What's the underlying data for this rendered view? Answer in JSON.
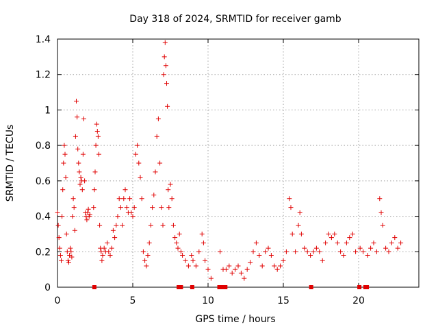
{
  "chart_data": {
    "type": "scatter",
    "title": "Day 318 of 2024, SRMTID for receiver gamb",
    "xlabel": "GPS time / hours",
    "ylabel": "SRMTID / TECUs",
    "xlim": [
      0,
      24
    ],
    "ylim": [
      0,
      1.4
    ],
    "xticks": [
      0,
      5,
      10,
      15,
      20
    ],
    "xtick_labels": [
      "0",
      "5",
      "10",
      "15",
      "20"
    ],
    "yticks": [
      0,
      0.2,
      0.4,
      0.6,
      0.8,
      1.0,
      1.2,
      1.4
    ],
    "ytick_labels": [
      "0",
      "0.2",
      "0.4",
      "0.6",
      "0.8",
      "1",
      "1.2",
      "1.4"
    ],
    "grid": true,
    "marker": "+",
    "color": "#e00000",
    "series": [
      {
        "name": "SRMTID",
        "points": [
          [
            0.0,
            0.42
          ],
          [
            0.05,
            0.35
          ],
          [
            0.1,
            0.28
          ],
          [
            0.15,
            0.22
          ],
          [
            0.2,
            0.18
          ],
          [
            0.25,
            0.15
          ],
          [
            0.3,
            0.4
          ],
          [
            0.35,
            0.55
          ],
          [
            0.4,
            0.7
          ],
          [
            0.45,
            0.8
          ],
          [
            0.5,
            0.75
          ],
          [
            0.55,
            0.62
          ],
          [
            0.6,
            0.3
          ],
          [
            0.65,
            0.2
          ],
          [
            0.7,
            0.15
          ],
          [
            0.75,
            0.14
          ],
          [
            0.8,
            0.18
          ],
          [
            0.85,
            0.22
          ],
          [
            0.9,
            0.2
          ],
          [
            0.95,
            0.17
          ],
          [
            1.0,
            0.4
          ],
          [
            1.05,
            0.5
          ],
          [
            1.1,
            0.45
          ],
          [
            1.15,
            0.32
          ],
          [
            1.2,
            0.85
          ],
          [
            1.25,
            1.05
          ],
          [
            1.3,
            0.96
          ],
          [
            1.35,
            0.78
          ],
          [
            1.4,
            0.7
          ],
          [
            1.45,
            0.65
          ],
          [
            1.5,
            0.58
          ],
          [
            1.55,
            0.62
          ],
          [
            1.6,
            0.6
          ],
          [
            1.65,
            0.55
          ],
          [
            1.7,
            0.75
          ],
          [
            1.75,
            0.95
          ],
          [
            1.8,
            0.6
          ],
          [
            1.85,
            0.42
          ],
          [
            1.9,
            0.4
          ],
          [
            1.95,
            0.38
          ],
          [
            2.0,
            0.42
          ],
          [
            2.05,
            0.44
          ],
          [
            2.1,
            0.4
          ],
          [
            2.15,
            0.41
          ],
          [
            2.4,
            0.45
          ],
          [
            2.45,
            0.55
          ],
          [
            2.5,
            0.65
          ],
          [
            2.55,
            0.8
          ],
          [
            2.6,
            0.92
          ],
          [
            2.65,
            0.88
          ],
          [
            2.7,
            0.85
          ],
          [
            2.75,
            0.75
          ],
          [
            2.8,
            0.35
          ],
          [
            2.85,
            0.22
          ],
          [
            2.9,
            0.2
          ],
          [
            2.95,
            0.15
          ],
          [
            3.0,
            0.18
          ],
          [
            3.1,
            0.22
          ],
          [
            3.2,
            0.2
          ],
          [
            3.3,
            0.25
          ],
          [
            3.4,
            0.2
          ],
          [
            3.5,
            0.18
          ],
          [
            3.6,
            0.22
          ],
          [
            3.7,
            0.32
          ],
          [
            3.8,
            0.28
          ],
          [
            3.9,
            0.35
          ],
          [
            4.0,
            0.4
          ],
          [
            4.1,
            0.5
          ],
          [
            4.2,
            0.45
          ],
          [
            4.3,
            0.35
          ],
          [
            4.4,
            0.5
          ],
          [
            4.5,
            0.55
          ],
          [
            4.6,
            0.45
          ],
          [
            4.7,
            0.42
          ],
          [
            4.8,
            0.5
          ],
          [
            4.9,
            0.42
          ],
          [
            5.0,
            0.4
          ],
          [
            5.1,
            0.45
          ],
          [
            5.2,
            0.75
          ],
          [
            5.3,
            0.8
          ],
          [
            5.4,
            0.7
          ],
          [
            5.5,
            0.62
          ],
          [
            5.6,
            0.5
          ],
          [
            5.7,
            0.2
          ],
          [
            5.8,
            0.15
          ],
          [
            5.9,
            0.12
          ],
          [
            6.0,
            0.18
          ],
          [
            6.1,
            0.25
          ],
          [
            6.2,
            0.35
          ],
          [
            6.3,
            0.45
          ],
          [
            6.4,
            0.52
          ],
          [
            6.5,
            0.65
          ],
          [
            6.6,
            0.85
          ],
          [
            6.7,
            0.95
          ],
          [
            6.8,
            0.7
          ],
          [
            6.9,
            0.45
          ],
          [
            7.0,
            0.35
          ],
          [
            7.05,
            1.2
          ],
          [
            7.1,
            1.3
          ],
          [
            7.15,
            1.38
          ],
          [
            7.2,
            1.25
          ],
          [
            7.25,
            1.15
          ],
          [
            7.3,
            1.02
          ],
          [
            7.35,
            0.55
          ],
          [
            7.4,
            0.45
          ],
          [
            7.5,
            0.58
          ],
          [
            7.6,
            0.5
          ],
          [
            7.7,
            0.35
          ],
          [
            7.8,
            0.28
          ],
          [
            7.9,
            0.25
          ],
          [
            8.0,
            0.22
          ],
          [
            8.1,
            0.3
          ],
          [
            8.2,
            0.2
          ],
          [
            8.3,
            0.18
          ],
          [
            8.5,
            0.15
          ],
          [
            8.7,
            0.12
          ],
          [
            8.9,
            0.18
          ],
          [
            9.0,
            0.15
          ],
          [
            9.2,
            0.12
          ],
          [
            9.4,
            0.2
          ],
          [
            9.6,
            0.3
          ],
          [
            9.7,
            0.25
          ],
          [
            9.8,
            0.15
          ],
          [
            10.0,
            0.1
          ],
          [
            10.2,
            0.05
          ],
          [
            10.8,
            0.2
          ],
          [
            11.0,
            0.1
          ],
          [
            11.2,
            0.1
          ],
          [
            11.4,
            0.12
          ],
          [
            11.6,
            0.08
          ],
          [
            11.8,
            0.1
          ],
          [
            12.0,
            0.12
          ],
          [
            12.2,
            0.08
          ],
          [
            12.4,
            0.05
          ],
          [
            12.6,
            0.1
          ],
          [
            12.8,
            0.14
          ],
          [
            13.0,
            0.2
          ],
          [
            13.2,
            0.25
          ],
          [
            13.4,
            0.18
          ],
          [
            13.6,
            0.12
          ],
          [
            13.8,
            0.2
          ],
          [
            14.0,
            0.22
          ],
          [
            14.2,
            0.18
          ],
          [
            14.4,
            0.12
          ],
          [
            14.6,
            0.1
          ],
          [
            14.8,
            0.12
          ],
          [
            15.0,
            0.15
          ],
          [
            15.2,
            0.2
          ],
          [
            15.4,
            0.5
          ],
          [
            15.5,
            0.45
          ],
          [
            15.6,
            0.3
          ],
          [
            15.8,
            0.2
          ],
          [
            16.0,
            0.35
          ],
          [
            16.1,
            0.42
          ],
          [
            16.2,
            0.3
          ],
          [
            16.4,
            0.22
          ],
          [
            16.6,
            0.2
          ],
          [
            16.8,
            0.18
          ],
          [
            17.0,
            0.2
          ],
          [
            17.2,
            0.22
          ],
          [
            17.4,
            0.2
          ],
          [
            17.6,
            0.15
          ],
          [
            17.8,
            0.25
          ],
          [
            18.0,
            0.3
          ],
          [
            18.2,
            0.28
          ],
          [
            18.4,
            0.3
          ],
          [
            18.6,
            0.25
          ],
          [
            18.8,
            0.2
          ],
          [
            19.0,
            0.18
          ],
          [
            19.2,
            0.25
          ],
          [
            19.4,
            0.28
          ],
          [
            19.6,
            0.3
          ],
          [
            19.8,
            0.2
          ],
          [
            20.1,
            0.22
          ],
          [
            20.3,
            0.2
          ],
          [
            20.6,
            0.18
          ],
          [
            20.8,
            0.22
          ],
          [
            21.0,
            0.25
          ],
          [
            21.2,
            0.2
          ],
          [
            21.4,
            0.5
          ],
          [
            21.5,
            0.42
          ],
          [
            21.6,
            0.35
          ],
          [
            21.8,
            0.22
          ],
          [
            22.0,
            0.2
          ],
          [
            22.2,
            0.25
          ],
          [
            22.4,
            0.28
          ],
          [
            22.6,
            0.22
          ],
          [
            22.8,
            0.25
          ]
        ],
        "zero_points": [
          2.45,
          8.05,
          8.2,
          8.95,
          10.75,
          10.95,
          11.15,
          16.85,
          20.05,
          20.45,
          20.55
        ]
      }
    ]
  }
}
